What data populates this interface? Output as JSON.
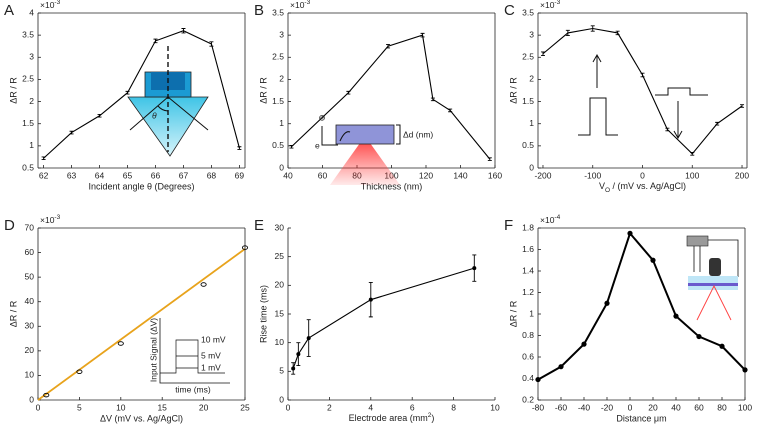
{
  "chart_data": [
    {
      "type": "line",
      "label": "A",
      "multiplier": [
        "×10",
        {
          "text": "-3",
          "script": "sup"
        }
      ],
      "xlabel": "Incident angle θ  (Degrees)",
      "ylabel": "ΔR / R",
      "x": [
        62,
        63,
        64,
        65,
        66,
        67,
        68,
        69
      ],
      "series": [
        {
          "color": "#000000",
          "values": [
            0.72,
            1.3,
            1.68,
            2.2,
            3.37,
            3.6,
            3.3,
            0.95
          ],
          "errors": [
            0.03,
            0.03,
            0.03,
            0.03,
            0.04,
            0.05,
            0.05,
            0.03
          ]
        }
      ],
      "xlim": [
        61.8,
        69.2
      ],
      "xticks": [
        62,
        63,
        64,
        65,
        66,
        67,
        68,
        69
      ],
      "ylim": [
        0.5,
        4
      ],
      "yticks": [
        0.5,
        1,
        1.5,
        2,
        2.5,
        3,
        3.5,
        4
      ],
      "box": true,
      "annotations": [
        "θ"
      ]
    },
    {
      "type": "line",
      "label": "B",
      "multiplier": [
        "×10",
        {
          "text": "-3",
          "script": "sup"
        }
      ],
      "xlabel": "Thickness (nm)",
      "ylabel": "ΔR / R",
      "x": [
        42,
        75,
        98,
        118,
        124,
        134,
        157
      ],
      "series": [
        {
          "color": "#000000",
          "values": [
            0.48,
            1.7,
            2.75,
            3.0,
            1.55,
            1.3,
            0.2
          ],
          "errors": [
            0.03,
            0.03,
            0.04,
            0.04,
            0.03,
            0.03,
            0.03
          ]
        }
      ],
      "xlim": [
        40,
        160
      ],
      "xticks": [
        40,
        60,
        80,
        100,
        120,
        140,
        160
      ],
      "ylim": [
        0,
        3.5
      ],
      "yticks": [
        0,
        0.5,
        1,
        1.5,
        2,
        2.5,
        3,
        3.5
      ],
      "box": true,
      "annotations": [
        "⊕",
        "e",
        "Δd (nm)"
      ]
    },
    {
      "type": "line",
      "label": "C",
      "multiplier": [
        "×10",
        {
          "text": "-3",
          "script": "sup"
        }
      ],
      "xlabel": [
        "V",
        {
          "text": "O",
          "script": "sub"
        },
        " / (mV vs. Ag/AgCl)"
      ],
      "ylabel": "ΔR / R",
      "x": [
        -200,
        -150,
        -100,
        -50,
        0,
        50,
        100,
        150,
        200
      ],
      "series": [
        {
          "color": "#000000",
          "values": [
            2.58,
            3.05,
            3.15,
            3.05,
            2.1,
            0.87,
            0.32,
            1.0,
            1.4
          ],
          "errors": [
            0.04,
            0.06,
            0.06,
            0.04,
            0.04,
            0.03,
            0.03,
            0.03,
            0.03
          ]
        }
      ],
      "xlim": [
        -210,
        210
      ],
      "xticks": [
        -200,
        -100,
        0,
        100,
        200
      ],
      "ylim": [
        0,
        3.5
      ],
      "yticks": [
        0,
        0.5,
        1,
        1.5,
        2,
        2.5,
        3,
        3.5
      ],
      "box": true
    },
    {
      "type": "scatter",
      "label": "D",
      "multiplier": [
        "×10",
        {
          "text": "-3",
          "script": "sup"
        }
      ],
      "xlabel": "ΔV (mV vs. Ag/AgCl)",
      "ylabel": "ΔR / R",
      "x": [
        1,
        5,
        10,
        20,
        25
      ],
      "series": [
        {
          "color": "#000000",
          "values": [
            2,
            11.5,
            23,
            47,
            62
          ]
        }
      ],
      "fit": {
        "x": [
          0,
          25
        ],
        "values": [
          0,
          61.5
        ],
        "color": "#e8a31c"
      },
      "xlim": [
        0,
        25
      ],
      "xticks": [
        0,
        5,
        10,
        15,
        20,
        25
      ],
      "ylim": [
        0,
        70
      ],
      "yticks": [
        0,
        10,
        20,
        30,
        40,
        50,
        60,
        70
      ],
      "box": true,
      "annotations": [
        "Input Signal (ΔV)",
        "time (ms)",
        "10 mV",
        "5 mV",
        "1 mV"
      ]
    },
    {
      "type": "line",
      "label": "E",
      "xlabel": [
        "Electrode area (mm",
        {
          "text": "2",
          "script": "sup"
        },
        ")"
      ],
      "ylabel": "Rise time (ms)",
      "x": [
        0.25,
        0.5,
        1,
        4,
        9
      ],
      "series": [
        {
          "color": "#000000",
          "values": [
            5.5,
            8,
            10.8,
            17.5,
            23
          ],
          "errors": [
            1,
            2,
            3.2,
            3,
            2.3
          ]
        }
      ],
      "xlim": [
        0,
        10
      ],
      "xticks": [
        0,
        2,
        4,
        6,
        8,
        10
      ],
      "ylim": [
        0,
        30
      ],
      "yticks": [
        0,
        5,
        10,
        15,
        20,
        25,
        30
      ],
      "box": false
    },
    {
      "type": "line",
      "label": "F",
      "multiplier": [
        "×10",
        {
          "text": "-4",
          "script": "sup"
        }
      ],
      "xlabel": "Distance μm",
      "ylabel": "ΔR / R",
      "x": [
        -80,
        -60,
        -40,
        -20,
        0,
        20,
        40,
        60,
        80,
        100
      ],
      "series": [
        {
          "color": "#000000",
          "values": [
            0.39,
            0.51,
            0.72,
            1.1,
            1.75,
            1.5,
            0.98,
            0.79,
            0.7,
            0.48
          ]
        }
      ],
      "xlim": [
        -80,
        100
      ],
      "xticks": [
        -80,
        -60,
        -40,
        -20,
        0,
        20,
        40,
        60,
        80,
        100
      ],
      "ylim": [
        0.2,
        1.8
      ],
      "yticks": [
        0.2,
        0.4,
        0.6,
        0.8,
        1,
        1.2,
        1.4,
        1.6,
        1.8
      ],
      "box": true
    }
  ]
}
